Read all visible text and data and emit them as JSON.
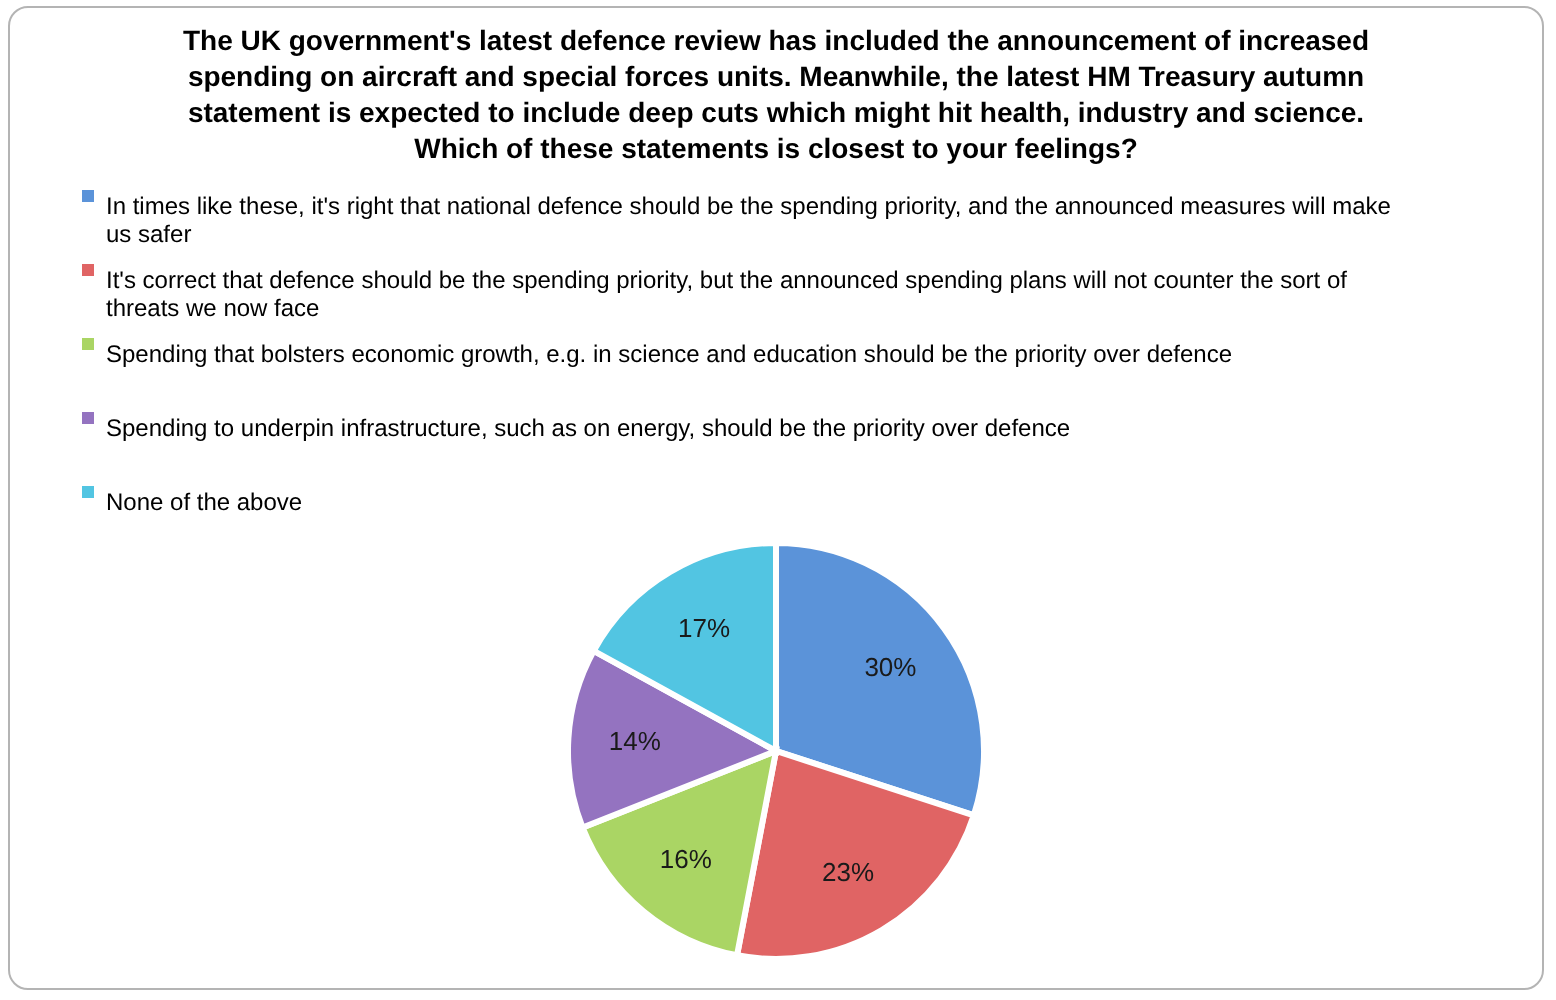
{
  "chart_data": {
    "type": "pie",
    "title": "The UK government's latest defence review has included the announcement of increased spending on aircraft and special forces units. Meanwhile, the latest HM Treasury autumn statement is expected to include deep cuts which might hit health, industry and science. Which of these statements is closest to your feelings?",
    "categories": [
      "In times like these, it's right that national defence should be the spending priority, and the announced measures will make us safer",
      "It's correct that defence should be the spending priority, but the announced spending plans will not counter the sort of threats we now face",
      "Spending that bolsters economic growth, e.g. in science and education should be the priority over defence",
      "Spending to underpin infrastructure, such as on energy, should be the priority over defence",
      "None of the above"
    ],
    "values": [
      30,
      23,
      16,
      14,
      17
    ],
    "colors": [
      "#5b93d9",
      "#e06464",
      "#aad564",
      "#9473c0",
      "#52c5e2"
    ],
    "value_labels": [
      "30%",
      "23%",
      "16%",
      "14%",
      "17%"
    ],
    "legend": "top"
  }
}
